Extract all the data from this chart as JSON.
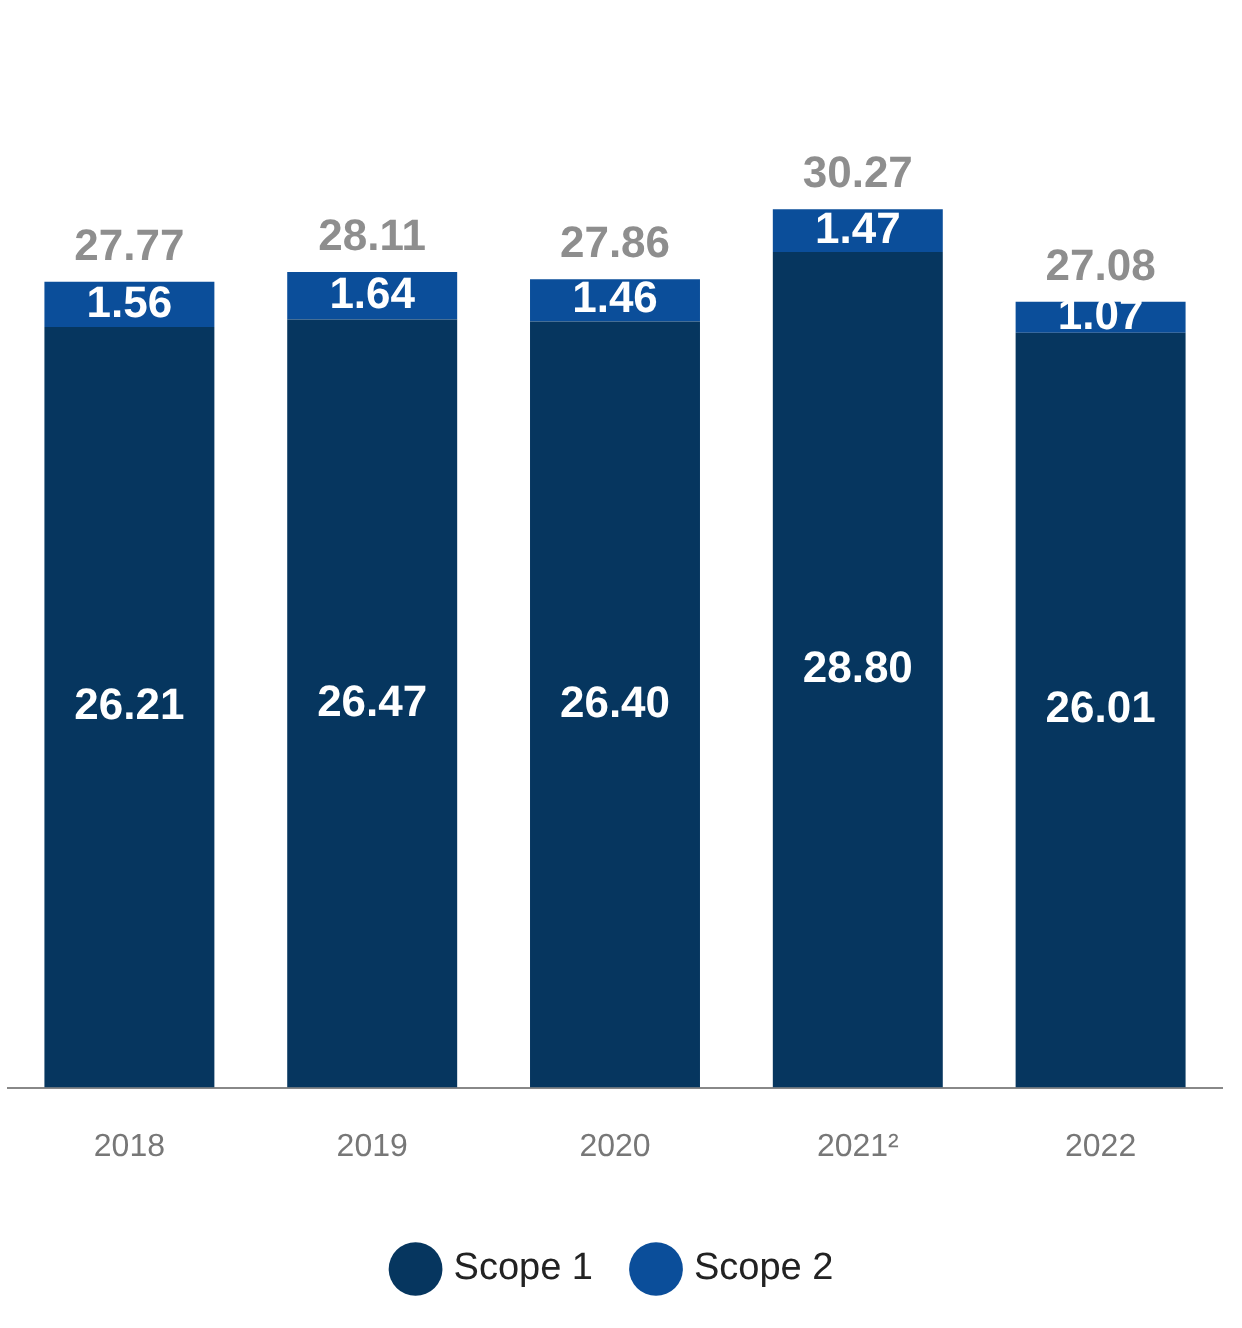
{
  "chart_data": {
    "type": "bar",
    "stacked": true,
    "legend": "bottom",
    "grid": false,
    "categories": [
      "2018",
      "2019",
      "2020",
      "2021²",
      "2022"
    ],
    "series": [
      {
        "name": "Scope 1",
        "color": "#06365f",
        "values": [
          26.21,
          26.47,
          26.4,
          28.8,
          26.01
        ],
        "value_labels": [
          "26.21",
          "26.47",
          "26.40",
          "28.80",
          "26.01"
        ]
      },
      {
        "name": "Scope 2",
        "color": "#0b4e9a",
        "values": [
          1.56,
          1.64,
          1.46,
          1.47,
          1.07
        ],
        "value_labels": [
          "1.56",
          "1.64",
          "1.46",
          "1.47",
          "1.07"
        ]
      }
    ],
    "totals": [
      "27.77",
      "28.11",
      "27.86",
      "30.27",
      "27.08"
    ]
  }
}
